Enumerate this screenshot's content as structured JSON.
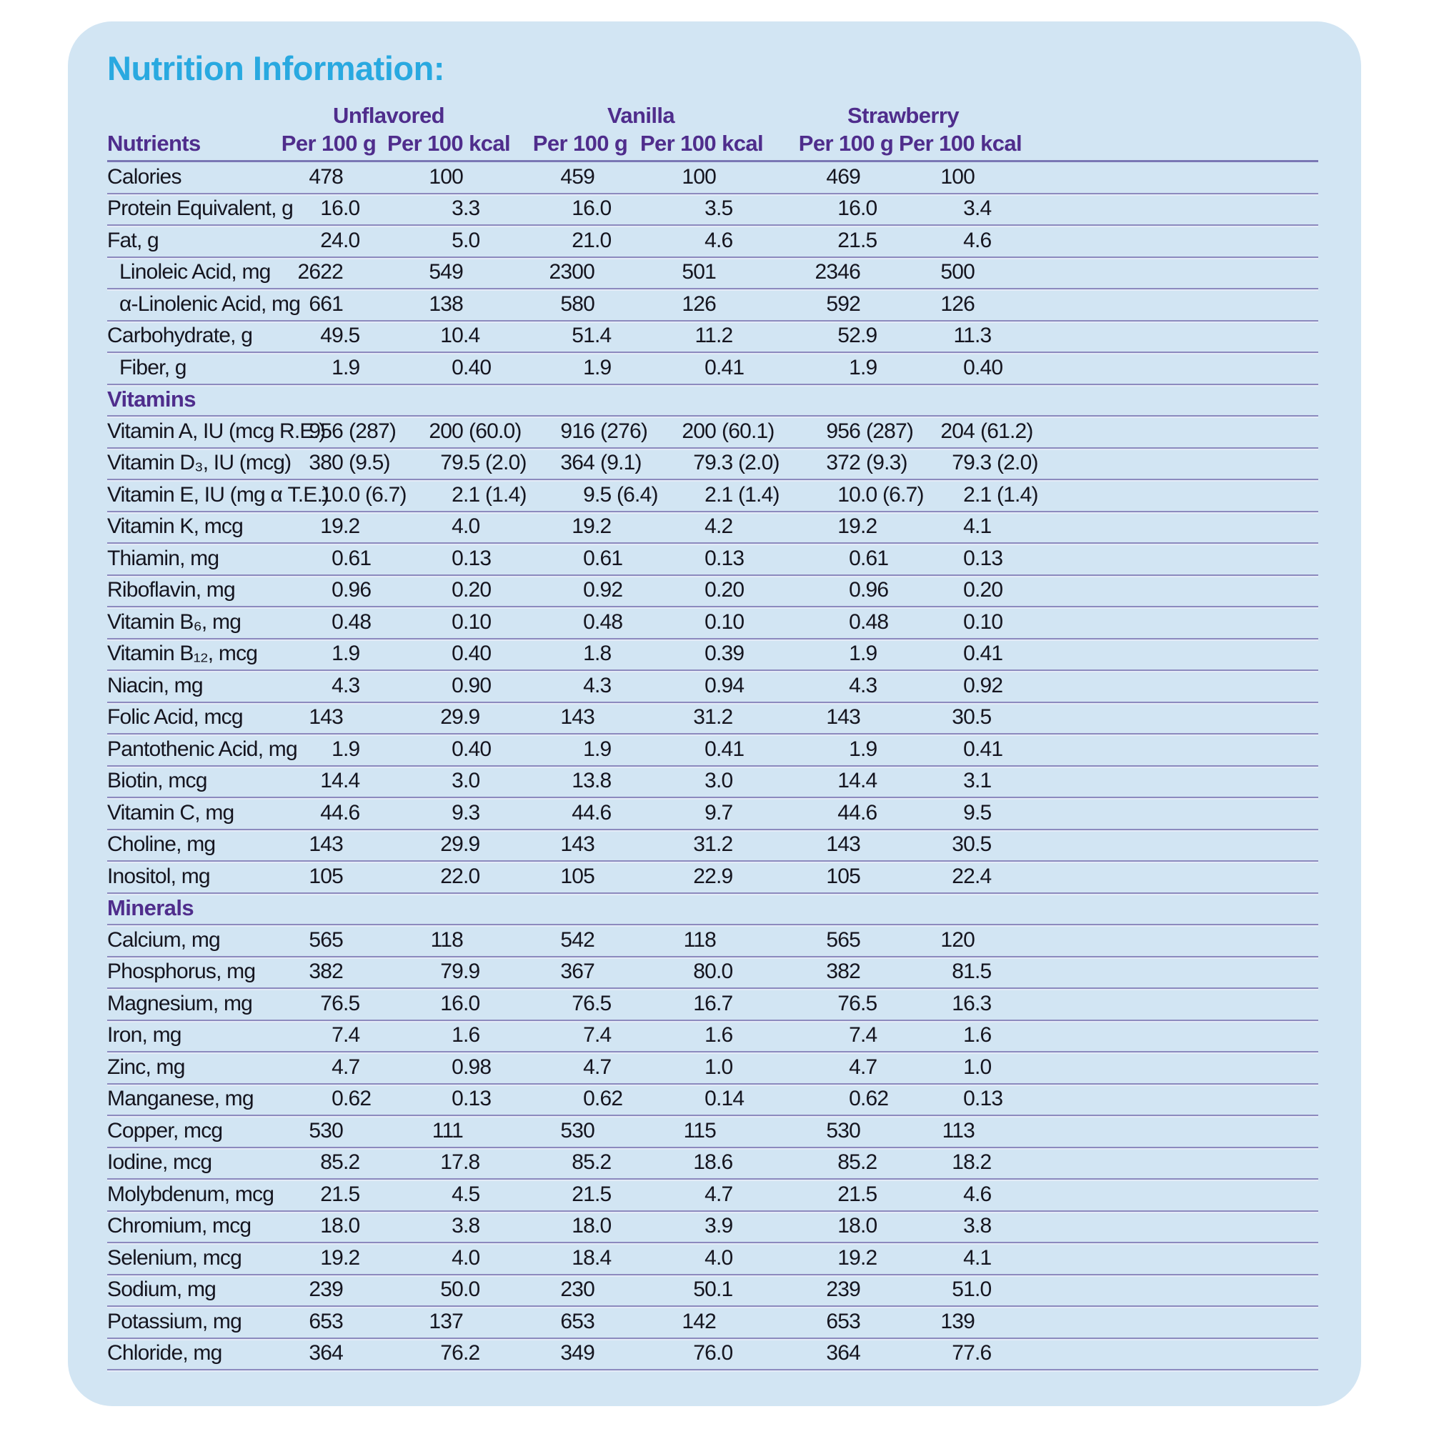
{
  "title": "Nutrition Information:",
  "colors": {
    "card_background": "#d2e5f3",
    "title_cyan": "#29a9e0",
    "header_purple": "#4f2d8c",
    "rule_lavender": "#8c8abe",
    "body_text": "#15151f"
  },
  "table": {
    "flavor_groups": [
      "Unflavored",
      "Vanilla",
      "Strawberry"
    ],
    "nutrients_header": "Nutrients",
    "per_100g_header": "Per 100 g",
    "per_100kcal_header": "Per 100 kcal",
    "sections": [
      {
        "header": null,
        "rows": [
          {
            "label": "Calories",
            "indent": false,
            "values": [
              "478",
              "100",
              "459",
              "100",
              "469",
              "100"
            ]
          },
          {
            "label": "Protein Equivalent, g",
            "indent": false,
            "values": [
              "16.0",
              "3.3",
              "16.0",
              "3.5",
              "16.0",
              "3.4"
            ]
          },
          {
            "label": "Fat, g",
            "indent": false,
            "values": [
              "24.0",
              "5.0",
              "21.0",
              "4.6",
              "21.5",
              "4.6"
            ]
          },
          {
            "label": "Linoleic Acid, mg",
            "indent": true,
            "values": [
              "2622",
              "549",
              "2300",
              "501",
              "2346",
              "500"
            ]
          },
          {
            "label": "α-Linolenic Acid, mg",
            "indent": true,
            "values": [
              "661",
              "138",
              "580",
              "126",
              "592",
              "126"
            ]
          },
          {
            "label": "Carbohydrate, g",
            "indent": false,
            "values": [
              "49.5",
              "10.4",
              "51.4",
              "11.2",
              "52.9",
              "11.3"
            ]
          },
          {
            "label": "Fiber, g",
            "indent": true,
            "values": [
              "1.9",
              "0.40",
              "1.9",
              "0.41",
              "1.9",
              "0.40"
            ]
          }
        ]
      },
      {
        "header": "Vitamins",
        "rows": [
          {
            "label": "Vitamin A, IU (mcg R.E.)",
            "indent": false,
            "values": [
              "956 (287)",
              "200 (60.0)",
              "916 (276)",
              "200 (60.1)",
              "956 (287)",
              "204 (61.2)"
            ]
          },
          {
            "label": "Vitamin D₃, IU (mcg)",
            "indent": false,
            "values": [
              "380 (9.5)",
              "79.5 (2.0)",
              "364 (9.1)",
              "79.3 (2.0)",
              "372 (9.3)",
              "79.3 (2.0)"
            ]
          },
          {
            "label": "Vitamin E, IU (mg α T.E.)",
            "indent": false,
            "values": [
              "10.0 (6.7)",
              "2.1 (1.4)",
              "9.5 (6.4)",
              "2.1 (1.4)",
              "10.0 (6.7)",
              "2.1 (1.4)"
            ]
          },
          {
            "label": "Vitamin K, mcg",
            "indent": false,
            "values": [
              "19.2",
              "4.0",
              "19.2",
              "4.2",
              "19.2",
              "4.1"
            ]
          },
          {
            "label": "Thiamin, mg",
            "indent": false,
            "values": [
              "0.61",
              "0.13",
              "0.61",
              "0.13",
              "0.61",
              "0.13"
            ]
          },
          {
            "label": "Riboflavin, mg",
            "indent": false,
            "values": [
              "0.96",
              "0.20",
              "0.92",
              "0.20",
              "0.96",
              "0.20"
            ]
          },
          {
            "label": "Vitamin B₆, mg",
            "indent": false,
            "values": [
              "0.48",
              "0.10",
              "0.48",
              "0.10",
              "0.48",
              "0.10"
            ]
          },
          {
            "label": "Vitamin B₁₂, mcg",
            "indent": false,
            "values": [
              "1.9",
              "0.40",
              "1.8",
              "0.39",
              "1.9",
              "0.41"
            ]
          },
          {
            "label": "Niacin, mg",
            "indent": false,
            "values": [
              "4.3",
              "0.90",
              "4.3",
              "0.94",
              "4.3",
              "0.92"
            ]
          },
          {
            "label": "Folic Acid, mcg",
            "indent": false,
            "values": [
              "143",
              "29.9",
              "143",
              "31.2",
              "143",
              "30.5"
            ]
          },
          {
            "label": "Pantothenic Acid, mg",
            "indent": false,
            "values": [
              "1.9",
              "0.40",
              "1.9",
              "0.41",
              "1.9",
              "0.41"
            ]
          },
          {
            "label": "Biotin, mcg",
            "indent": false,
            "values": [
              "14.4",
              "3.0",
              "13.8",
              "3.0",
              "14.4",
              "3.1"
            ]
          },
          {
            "label": "Vitamin C, mg",
            "indent": false,
            "values": [
              "44.6",
              "9.3",
              "44.6",
              "9.7",
              "44.6",
              "9.5"
            ]
          },
          {
            "label": "Choline, mg",
            "indent": false,
            "values": [
              "143",
              "29.9",
              "143",
              "31.2",
              "143",
              "30.5"
            ]
          },
          {
            "label": "Inositol, mg",
            "indent": false,
            "values": [
              "105",
              "22.0",
              "105",
              "22.9",
              "105",
              "22.4"
            ]
          }
        ]
      },
      {
        "header": "Minerals",
        "rows": [
          {
            "label": "Calcium, mg",
            "indent": false,
            "values": [
              "565",
              "118",
              "542",
              "118",
              "565",
              "120"
            ]
          },
          {
            "label": "Phosphorus, mg",
            "indent": false,
            "values": [
              "382",
              "79.9",
              "367",
              "80.0",
              "382",
              "81.5"
            ]
          },
          {
            "label": "Magnesium, mg",
            "indent": false,
            "values": [
              "76.5",
              "16.0",
              "76.5",
              "16.7",
              "76.5",
              "16.3"
            ]
          },
          {
            "label": "Iron, mg",
            "indent": false,
            "values": [
              "7.4",
              "1.6",
              "7.4",
              "1.6",
              "7.4",
              "1.6"
            ]
          },
          {
            "label": "Zinc, mg",
            "indent": false,
            "values": [
              "4.7",
              "0.98",
              "4.7",
              "1.0",
              "4.7",
              "1.0"
            ]
          },
          {
            "label": "Manganese, mg",
            "indent": false,
            "values": [
              "0.62",
              "0.13",
              "0.62",
              "0.14",
              "0.62",
              "0.13"
            ]
          },
          {
            "label": "Copper, mcg",
            "indent": false,
            "values": [
              "530",
              "111",
              "530",
              "115",
              "530",
              "113"
            ]
          },
          {
            "label": "Iodine, mcg",
            "indent": false,
            "values": [
              "85.2",
              "17.8",
              "85.2",
              "18.6",
              "85.2",
              "18.2"
            ]
          },
          {
            "label": "Molybdenum, mcg",
            "indent": false,
            "values": [
              "21.5",
              "4.5",
              "21.5",
              "4.7",
              "21.5",
              "4.6"
            ]
          },
          {
            "label": "Chromium, mcg",
            "indent": false,
            "values": [
              "18.0",
              "3.8",
              "18.0",
              "3.9",
              "18.0",
              "3.8"
            ]
          },
          {
            "label": "Selenium, mcg",
            "indent": false,
            "values": [
              "19.2",
              "4.0",
              "18.4",
              "4.0",
              "19.2",
              "4.1"
            ]
          },
          {
            "label": "Sodium, mg",
            "indent": false,
            "values": [
              "239",
              "50.0",
              "230",
              "50.1",
              "239",
              "51.0"
            ]
          },
          {
            "label": "Potassium, mg",
            "indent": false,
            "values": [
              "653",
              "137",
              "653",
              "142",
              "653",
              "139"
            ]
          },
          {
            "label": "Chloride, mg",
            "indent": false,
            "values": [
              "364",
              "76.2",
              "349",
              "76.0",
              "364",
              "77.6"
            ]
          }
        ]
      }
    ]
  }
}
